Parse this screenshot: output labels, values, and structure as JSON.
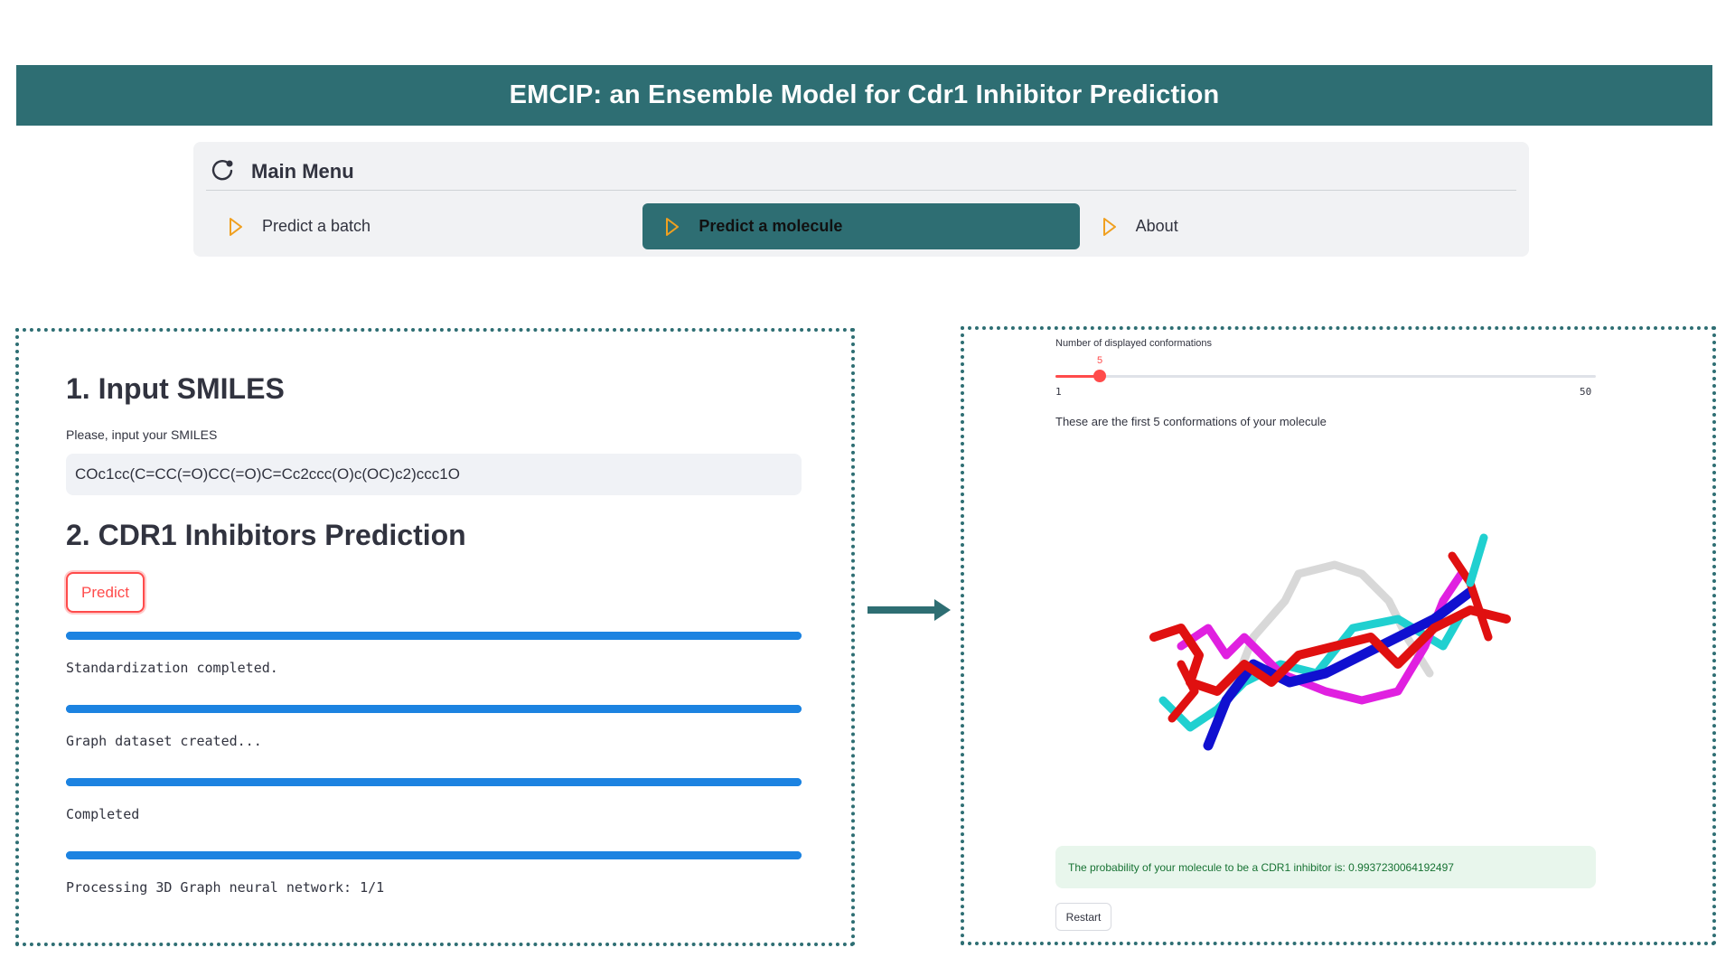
{
  "header": {
    "title": "EMCIP: an Ensemble Model for Cdr1 Inhibitor Prediction"
  },
  "menu": {
    "title": "Main Menu",
    "items": [
      {
        "label": "Predict a batch",
        "active": false
      },
      {
        "label": "Predict a molecule",
        "active": true
      },
      {
        "label": "About",
        "active": false
      }
    ],
    "accent_color": "#2e6e73",
    "icon_color": "#f0a020"
  },
  "input_section": {
    "heading": "1. Input SMILES",
    "field_label": "Please, input your SMILES",
    "smiles_value": "COc1cc(C=CC(=O)CC(=O)C=Cc2ccc(O)c(OC)c2)ccc1O"
  },
  "prediction_section": {
    "heading": "2. CDR1 Inhibitors Prediction",
    "predict_label": "Predict",
    "steps": [
      {
        "status": "Standardization completed.",
        "progress": 1.0
      },
      {
        "status": "Graph dataset created...",
        "progress": 1.0
      },
      {
        "status": "Completed",
        "progress": 1.0
      },
      {
        "status": "Processing 3D Graph neural network: 1/1",
        "progress": 1.0
      }
    ]
  },
  "result_panel": {
    "slider_label": "Number of displayed conformations",
    "slider_min": "1",
    "slider_max": "50",
    "slider_value": "5",
    "conformations_text": "These are the first 5 conformations of your molecule",
    "molecule_view_icon": "3d-molecule-render",
    "result_text": "The probability of your molecule to be a CDR1 inhibitor is: 0.9937230064192497",
    "restart_label": "Restart"
  }
}
